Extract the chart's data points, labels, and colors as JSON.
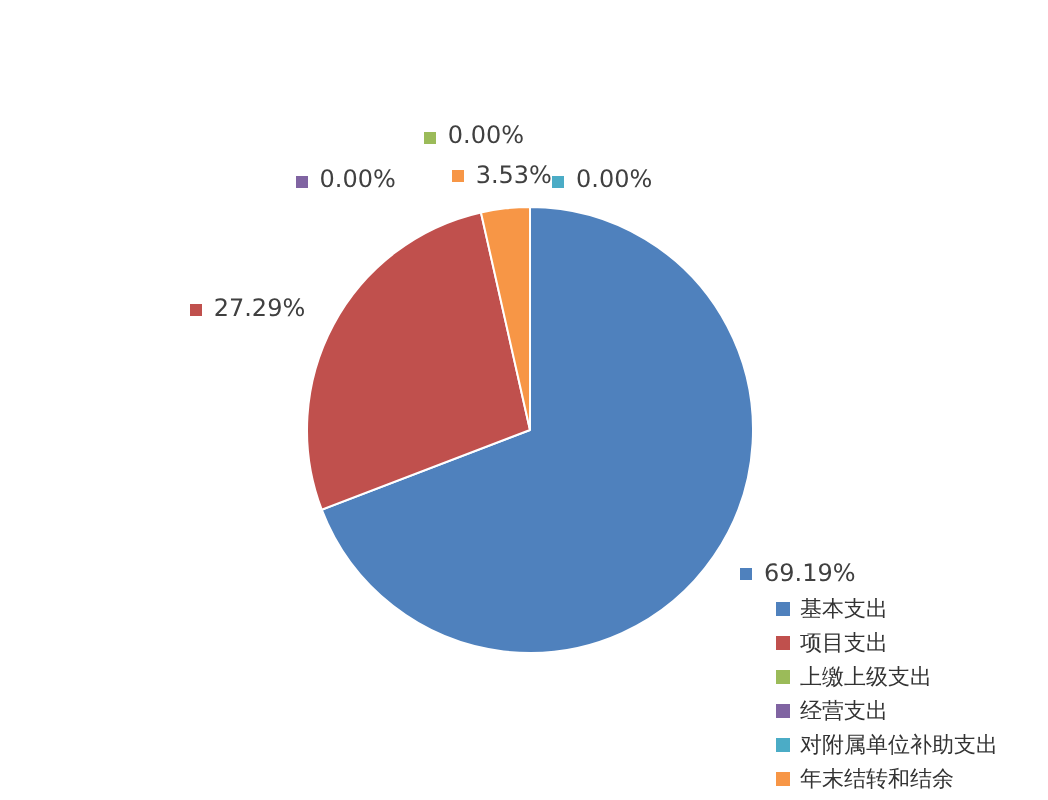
{
  "chart_data": {
    "type": "pie",
    "categories": [
      "基本支出",
      "项目支出",
      "上缴上级支出",
      "经营支出",
      "对附属单位补助支出",
      "年末结转和结余"
    ],
    "values": [
      69.19,
      27.29,
      0.0,
      0.0,
      0.0,
      3.53
    ],
    "value_labels": [
      "69.19%",
      "27.29%",
      "0.00%",
      "0.00%",
      "0.00%",
      "3.53%"
    ],
    "colors": [
      "#4f81bd",
      "#c0504d",
      "#9bbb59",
      "#8064a2",
      "#4bacc6",
      "#f79646"
    ],
    "legend": "bottom right"
  }
}
